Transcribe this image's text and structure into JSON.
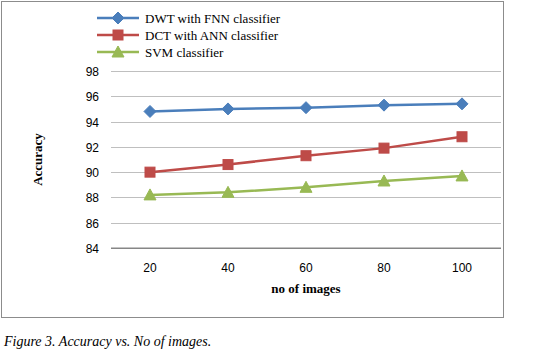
{
  "chart_data": {
    "type": "line",
    "caption": "Figure 3. Accuracy vs. No of images.",
    "x_label": "no of images",
    "y_label": "Accuracy",
    "categories": [
      20,
      40,
      60,
      80,
      100
    ],
    "series": [
      {
        "name": "DWT with FNN classifier",
        "color": "#4a7ebb",
        "marker": "diamond",
        "values": [
          94.8,
          95.0,
          95.1,
          95.3,
          95.4
        ]
      },
      {
        "name": "DCT with ANN classifier",
        "color": "#be4b48",
        "marker": "square",
        "values": [
          90.0,
          90.6,
          91.3,
          91.9,
          92.8
        ]
      },
      {
        "name": "SVM classifier",
        "color": "#98b954",
        "marker": "triangle",
        "values": [
          88.2,
          88.4,
          88.8,
          89.3,
          89.7
        ]
      }
    ],
    "ylim": [
      84,
      98
    ],
    "yticks": [
      84,
      86,
      88,
      90,
      92,
      94,
      96,
      98
    ],
    "grid": true,
    "legend": "top-left"
  }
}
